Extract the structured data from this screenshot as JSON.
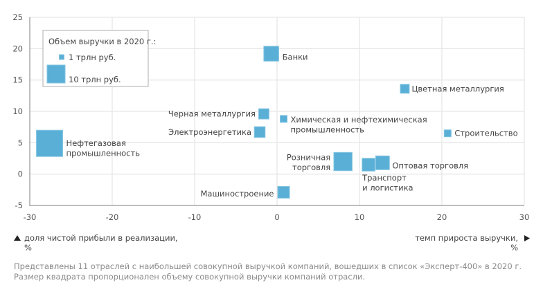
{
  "chart_data": {
    "type": "scatter",
    "marker": "square",
    "size_encoding": "revenue_trln_rub",
    "xlabel_line1": "темп прироста выручки,",
    "xlabel_line2": "%",
    "ylabel_line1": "доля чистой прибыли в реализации,",
    "ylabel_line2": "%",
    "xlim": [
      -30,
      30
    ],
    "ylim": [
      -5,
      25
    ],
    "xticks": [
      -30,
      -20,
      -10,
      0,
      10,
      20,
      30
    ],
    "yticks": [
      -5,
      0,
      5,
      10,
      15,
      20,
      25
    ],
    "grid": true,
    "color": "#5aafd6",
    "legend": {
      "title": "Объем выручки в 2020 г.:",
      "placement": "top-left",
      "items": [
        {
          "label": "1 трлн руб.",
          "size": 1
        },
        {
          "label": "10 трлн руб.",
          "size": 10
        }
      ]
    },
    "points": [
      {
        "label": [
          "Нефтегазовая",
          "промышленность"
        ],
        "x": -27.6,
        "y": 4.9,
        "size": 21.5
      },
      {
        "label": [
          "Банки"
        ],
        "x": -0.7,
        "y": 19.2,
        "size": 6.9
      },
      {
        "label": [
          "Черная металлургия"
        ],
        "x": -1.6,
        "y": 9.6,
        "size": 3.3
      },
      {
        "label": [
          "Электроэнергетика"
        ],
        "x": -2.1,
        "y": 6.7,
        "size": 3.6
      },
      {
        "label": [
          "Машиностроение"
        ],
        "x": 0.8,
        "y": -2.9,
        "size": 4.3
      },
      {
        "label": [
          "Химическая и нефтехимическая",
          "промышленность"
        ],
        "x": 0.8,
        "y": 8.8,
        "size": 1.5
      },
      {
        "label": [
          "Цветная металлургия"
        ],
        "x": 15.5,
        "y": 13.6,
        "size": 2.5
      },
      {
        "label": [
          "Строительство"
        ],
        "x": 20.7,
        "y": 6.5,
        "size": 1.5
      },
      {
        "label": [
          "Розничная",
          "торговля"
        ],
        "x": 8.0,
        "y": 2.0,
        "size": 10.4
      },
      {
        "label": [
          "Транспорт",
          "и логистика"
        ],
        "x": 11.1,
        "y": 1.5,
        "size": 5.1
      },
      {
        "label": [
          "Оптовая торговля"
        ],
        "x": 12.8,
        "y": 1.8,
        "size": 5.9
      }
    ]
  },
  "notes": [
    "Представлены 11 отраслей с наибольшей совокупной выручкой компаний, вошедших в список «Эксперт-400» в 2020 г.",
    "Размер квадрата пропорционален объему совокупной выручки компаний отрасли."
  ]
}
